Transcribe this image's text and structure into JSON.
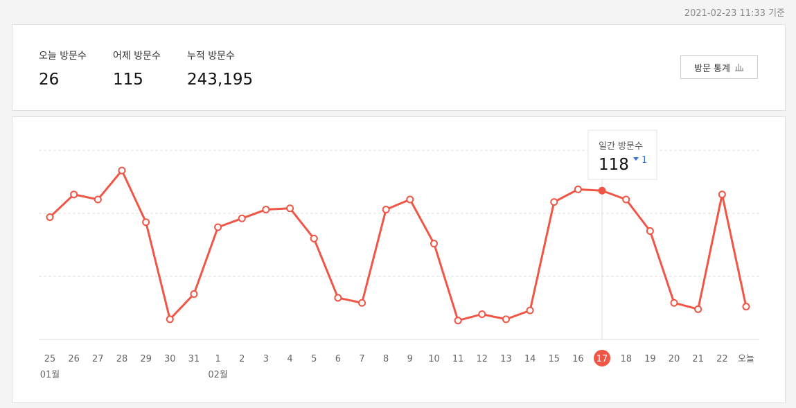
{
  "header": {
    "timestamp": "2021-02-23 11:33 기준"
  },
  "stats": [
    {
      "label": "오늘 방문수",
      "value": "26"
    },
    {
      "label": "어제 방문수",
      "value": "115"
    },
    {
      "label": "누적 방문수",
      "value": "243,195"
    }
  ],
  "button": "방문 통계",
  "chart_data": {
    "type": "line",
    "categories": [
      "25",
      "26",
      "27",
      "28",
      "29",
      "30",
      "31",
      "1",
      "2",
      "3",
      "4",
      "5",
      "6",
      "7",
      "8",
      "9",
      "10",
      "11",
      "12",
      "13",
      "14",
      "15",
      "16",
      "17",
      "18",
      "19",
      "20",
      "21",
      "22",
      "오늘"
    ],
    "months": [
      "01월",
      null,
      null,
      null,
      null,
      null,
      null,
      "02월",
      null,
      null,
      null,
      null,
      null,
      null,
      null,
      null,
      null,
      null,
      null,
      null,
      null,
      null,
      null,
      null,
      null,
      null,
      null,
      null,
      null,
      null
    ],
    "series": [
      {
        "name": "일간 방문수",
        "color": "#f05545",
        "values": [
          97,
          115,
          111,
          134,
          93,
          16,
          36,
          89,
          96,
          103,
          104,
          80,
          33,
          29,
          103,
          111,
          76,
          15,
          20,
          16,
          23,
          109,
          119,
          118,
          111,
          86,
          29,
          24,
          115,
          26
        ]
      }
    ],
    "ylim": [
      0,
      150
    ],
    "yticks": [
      50,
      100,
      150
    ],
    "grid": true,
    "selected": 23,
    "tooltip": {
      "change": 1,
      "direction": "down"
    }
  }
}
